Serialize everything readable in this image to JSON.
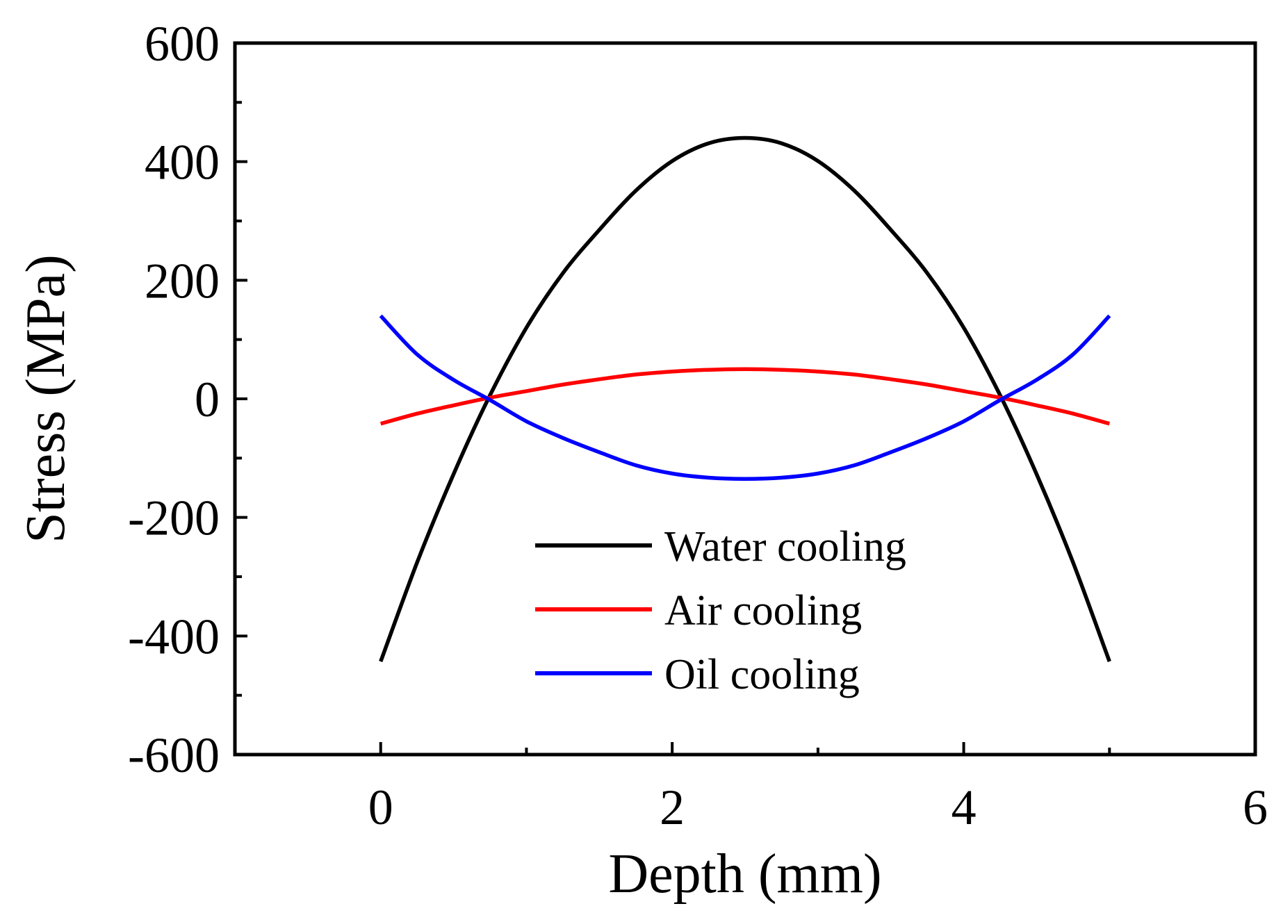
{
  "chart_data": {
    "type": "line",
    "title": "",
    "xlabel": "Depth (mm)",
    "ylabel": "Stress (MPa)",
    "xlim": [
      -1,
      6
    ],
    "ylim": [
      -600,
      600
    ],
    "xticks": [
      0,
      2,
      4,
      6
    ],
    "xtick_labels": [
      "0",
      "2",
      "4",
      "6"
    ],
    "yticks": [
      -600,
      -400,
      -200,
      0,
      200,
      400,
      600
    ],
    "ytick_labels": [
      "-600",
      "-400",
      "-200",
      "0",
      "200",
      "400",
      "600"
    ],
    "grid": false,
    "legend_position": "lower-center",
    "series": [
      {
        "name": "Water cooling",
        "color": "#000000",
        "x": [
          0,
          0.25,
          0.5,
          0.75,
          1.0,
          1.25,
          1.5,
          1.75,
          2.0,
          2.25,
          2.5,
          2.75,
          3.0,
          3.25,
          3.5,
          3.75,
          4.0,
          4.25,
          4.5,
          4.75,
          5.0
        ],
        "y": [
          -443,
          -276,
          -127,
          6,
          120,
          212,
          285,
          351,
          401,
          431,
          440,
          431,
          401,
          351,
          285,
          212,
          120,
          6,
          -127,
          -276,
          -443
        ]
      },
      {
        "name": "Air cooling",
        "color": "#ff0000",
        "x": [
          0,
          0.25,
          0.5,
          0.75,
          1.0,
          1.25,
          1.5,
          1.75,
          2.0,
          2.25,
          2.5,
          2.75,
          3.0,
          3.25,
          3.5,
          3.75,
          4.0,
          4.25,
          4.5,
          4.75,
          5.0
        ],
        "y": [
          -42,
          -25,
          -11,
          2,
          13,
          24,
          33,
          41,
          46,
          49,
          50,
          49,
          46,
          41,
          33,
          24,
          13,
          2,
          -11,
          -25,
          -42
        ]
      },
      {
        "name": "Oil cooling",
        "color": "#0000ff",
        "x": [
          0,
          0.25,
          0.5,
          0.75,
          1.0,
          1.25,
          1.5,
          1.75,
          2.0,
          2.25,
          2.5,
          2.75,
          3.0,
          3.25,
          3.5,
          3.75,
          4.0,
          4.25,
          4.5,
          4.75,
          5.0
        ],
        "y": [
          140,
          75,
          32,
          -2,
          -38,
          -66,
          -90,
          -112,
          -126,
          -133,
          -135,
          -133,
          -126,
          -112,
          -90,
          -66,
          -38,
          -2,
          32,
          75,
          140
        ]
      }
    ]
  }
}
